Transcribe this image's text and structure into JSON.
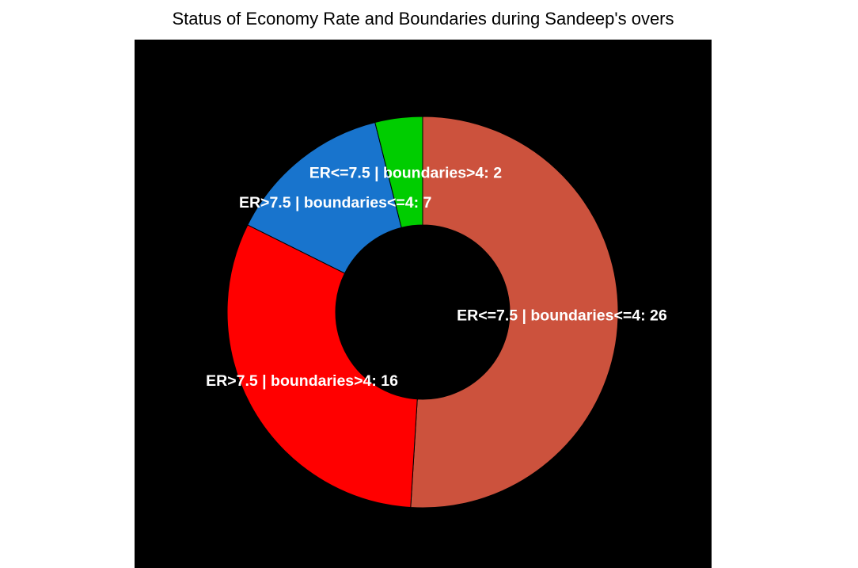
{
  "chart_data": {
    "type": "pie",
    "title": "Status of Economy Rate and Boundaries during Sandeep's overs",
    "donut": true,
    "background": "#000000",
    "slices": [
      {
        "label": "ER<=7.5 | boundaries<=4",
        "value": 26,
        "color": "#CC523D",
        "text": "ER<=7.5 | boundaries<=4: 26"
      },
      {
        "label": "ER>7.5 | boundaries>4",
        "value": 16,
        "color": "#FF0000",
        "text": "ER>7.5 | boundaries>4: 16"
      },
      {
        "label": "ER>7.5 | boundaries<=4",
        "value": 7,
        "color": "#1874CD",
        "text": "ER>7.5 | boundaries<=4: 7"
      },
      {
        "label": "ER<=7.5 | boundaries>4",
        "value": 2,
        "color": "#00CD00",
        "text": "ER<=7.5 | boundaries>4: 2"
      }
    ]
  }
}
